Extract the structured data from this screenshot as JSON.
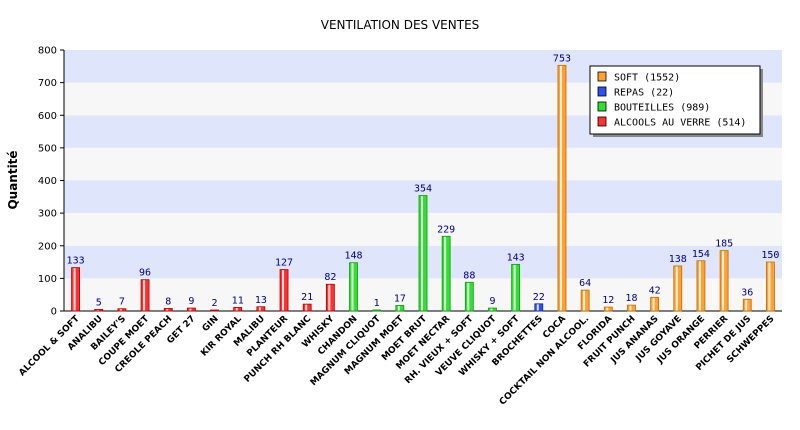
{
  "chart_data": {
    "type": "bar",
    "title": "VENTILATION DES VENTES",
    "ylabel": "Quantité",
    "xlabel": "",
    "ylim": [
      0,
      800
    ],
    "yticks": [
      0,
      100,
      200,
      300,
      400,
      500,
      600,
      700,
      800
    ],
    "grid": "horizontal bands",
    "legend_position": "top-right",
    "colors": {
      "soft": "#ffa030",
      "repas": "#3050ee",
      "bouteilles": "#30e030",
      "alcools": "#ff3030",
      "band_blue": "#dfe5fb",
      "band_white": "#f7f7f7"
    },
    "legend": [
      {
        "key": "soft",
        "label": "SOFT (1552)"
      },
      {
        "key": "repas",
        "label": "REPAS (22)"
      },
      {
        "key": "bouteilles",
        "label": "BOUTEILLES (989)"
      },
      {
        "key": "alcools",
        "label": "ALCOOLS AU VERRE (514)"
      }
    ],
    "bars": [
      {
        "label": "ALCOOL & SOFT",
        "value": 133,
        "series": "alcools"
      },
      {
        "label": "ANALIBU",
        "value": 5,
        "series": "alcools"
      },
      {
        "label": "BAILEY'S",
        "value": 7,
        "series": "alcools"
      },
      {
        "label": "COUPE MOET",
        "value": 96,
        "series": "alcools"
      },
      {
        "label": "CREOLE PEACH",
        "value": 8,
        "series": "alcools"
      },
      {
        "label": "GET 27",
        "value": 9,
        "series": "alcools"
      },
      {
        "label": "GIN",
        "value": 2,
        "series": "alcools"
      },
      {
        "label": "KIR ROYAL",
        "value": 11,
        "series": "alcools"
      },
      {
        "label": "MALIBU",
        "value": 13,
        "series": "alcools"
      },
      {
        "label": "PLANTEUR",
        "value": 127,
        "series": "alcools"
      },
      {
        "label": "PUNCH RH BLANC",
        "value": 21,
        "series": "alcools"
      },
      {
        "label": "WHISKY",
        "value": 82,
        "series": "alcools"
      },
      {
        "label": "CHANDON",
        "value": 148,
        "series": "bouteilles"
      },
      {
        "label": "MAGNUM CLIQUOT",
        "value": 1,
        "series": "bouteilles"
      },
      {
        "label": "MAGNUM MOET",
        "value": 17,
        "series": "bouteilles"
      },
      {
        "label": "MOET BRUT",
        "value": 354,
        "series": "bouteilles"
      },
      {
        "label": "MOET NECTAR",
        "value": 229,
        "series": "bouteilles"
      },
      {
        "label": "RH. VIEUX + SOFT",
        "value": 88,
        "series": "bouteilles"
      },
      {
        "label": "VEUVE CLIQUOT",
        "value": 9,
        "series": "bouteilles"
      },
      {
        "label": "WHISKY + SOFT",
        "value": 143,
        "series": "bouteilles"
      },
      {
        "label": "BROCHETTES",
        "value": 22,
        "series": "repas"
      },
      {
        "label": "COCA",
        "value": 753,
        "series": "soft"
      },
      {
        "label": "COCKTAIL NON ALCOOL.",
        "value": 64,
        "series": "soft"
      },
      {
        "label": "FLORIDA",
        "value": 12,
        "series": "soft"
      },
      {
        "label": "FRUIT PUNCH",
        "value": 18,
        "series": "soft"
      },
      {
        "label": "JUS ANANAS",
        "value": 42,
        "series": "soft"
      },
      {
        "label": "JUS GOYAVE",
        "value": 138,
        "series": "soft"
      },
      {
        "label": "JUS ORANGE",
        "value": 154,
        "series": "soft"
      },
      {
        "label": "PERRIER",
        "value": 185,
        "series": "soft"
      },
      {
        "label": "PICHET DE JUS",
        "value": 36,
        "series": "soft"
      },
      {
        "label": "SCHWEPPES",
        "value": 150,
        "series": "soft"
      }
    ]
  }
}
